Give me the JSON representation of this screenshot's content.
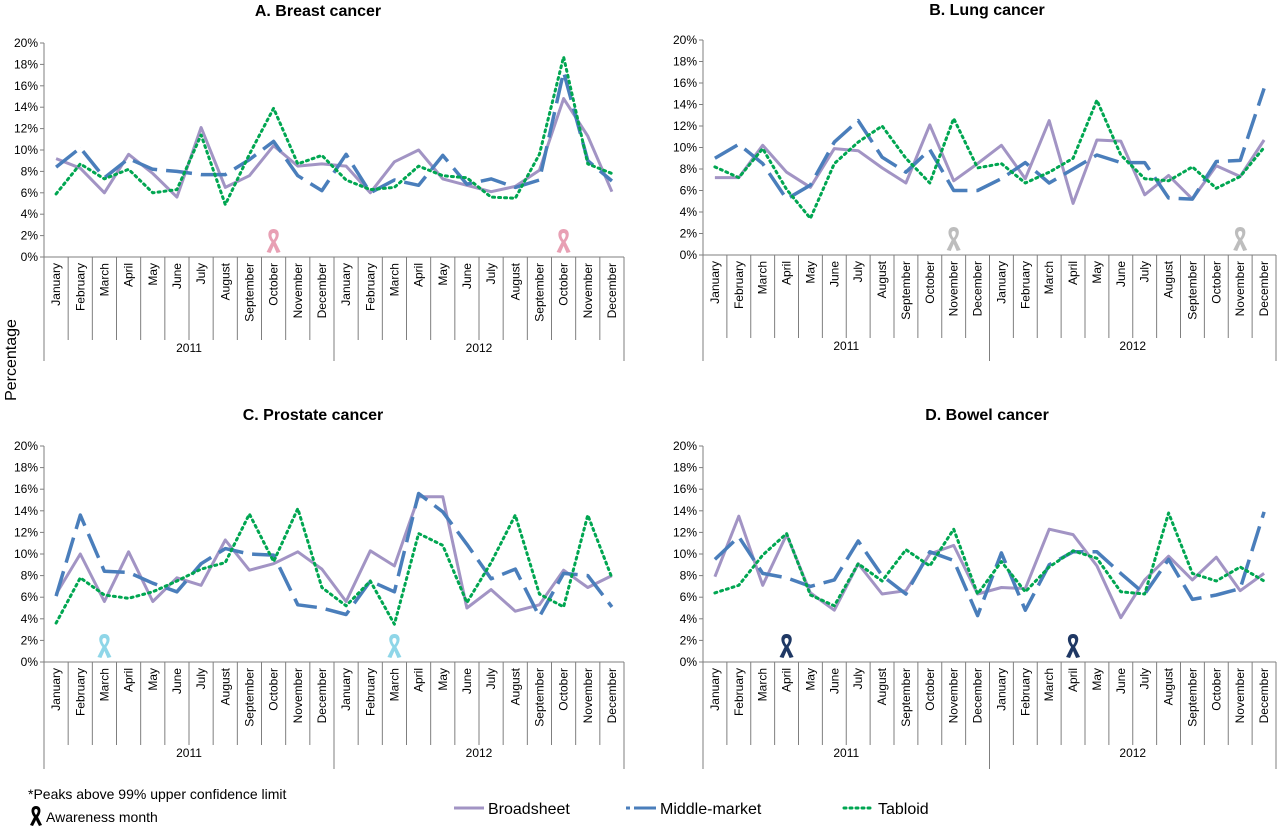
{
  "y_axis_label": "Percentage",
  "legend": {
    "items": [
      {
        "label": "Broadsheet",
        "color": "#a294c4",
        "dash": "solid"
      },
      {
        "label": "Middle-market",
        "color": "#4a7ebb",
        "dash": "long-dash"
      },
      {
        "label": "Tabloid",
        "color": "#00a651",
        "dash": "dotted"
      }
    ]
  },
  "notes": {
    "peaks": "*Peaks above 99% upper confidence limit",
    "awareness": "Awareness month"
  },
  "chart_data": [
    {
      "type": "line",
      "title": "A. Breast cancer",
      "years": [
        "2011",
        "2012"
      ],
      "categories": [
        "January",
        "February",
        "March",
        "April",
        "May",
        "June",
        "July",
        "August",
        "September",
        "October",
        "November",
        "December",
        "January",
        "February",
        "March",
        "April",
        "May",
        "June",
        "July",
        "August",
        "September",
        "October",
        "November",
        "December"
      ],
      "ylim": [
        0,
        20
      ],
      "yticks": [
        "0%",
        "2%",
        "4%",
        "6%",
        "8%",
        "10%",
        "12%",
        "14%",
        "16%",
        "18%",
        "20%"
      ],
      "awareness_months": [
        9,
        21
      ],
      "ribbon_color": "#e8a0b4",
      "series": [
        {
          "name": "Broadsheet",
          "values": [
            9.2,
            8.3,
            6.0,
            9.6,
            7.8,
            5.6,
            12.1,
            6.5,
            7.6,
            10.4,
            8.5,
            8.7,
            8.5,
            6.0,
            8.9,
            10.0,
            7.3,
            6.7,
            6.1,
            6.6,
            8.1,
            14.8,
            11.3,
            6.1
          ]
        },
        {
          "name": "Middle-market",
          "values": [
            8.4,
            10.2,
            7.4,
            9.2,
            8.2,
            8.0,
            7.7,
            7.7,
            9.1,
            10.8,
            7.6,
            6.2,
            9.6,
            6.0,
            7.2,
            6.7,
            9.5,
            6.8,
            7.3,
            6.5,
            7.2,
            17.3,
            9.0,
            7.1
          ]
        },
        {
          "name": "Tabloid",
          "values": [
            5.9,
            8.7,
            7.3,
            8.2,
            6.0,
            6.3,
            11.4,
            4.9,
            9.6,
            13.9,
            8.7,
            9.5,
            7.2,
            6.3,
            6.5,
            8.5,
            7.6,
            7.4,
            5.6,
            5.5,
            9.6,
            18.7,
            8.7,
            7.8
          ]
        }
      ]
    },
    {
      "type": "line",
      "title": "B. Lung cancer",
      "years": [
        "2011",
        "2012"
      ],
      "categories": [
        "January",
        "February",
        "March",
        "April",
        "May",
        "June",
        "July",
        "August",
        "September",
        "October",
        "November",
        "December",
        "January",
        "February",
        "March",
        "April",
        "May",
        "June",
        "July",
        "August",
        "September",
        "October",
        "November",
        "December"
      ],
      "ylim": [
        0,
        20
      ],
      "yticks": [
        "0%",
        "2%",
        "4%",
        "6%",
        "8%",
        "10%",
        "12%",
        "14%",
        "16%",
        "18%",
        "20%"
      ],
      "awareness_months": [
        10,
        22
      ],
      "ribbon_color": "#bdbdbd",
      "series": [
        {
          "name": "Broadsheet",
          "values": [
            7.2,
            7.2,
            10.2,
            7.7,
            6.3,
            9.9,
            9.7,
            8.1,
            6.7,
            12.1,
            6.9,
            8.5,
            10.2,
            7.1,
            12.5,
            4.8,
            10.7,
            10.6,
            5.6,
            7.4,
            5.2,
            8.3,
            7.3,
            10.7
          ]
        },
        {
          "name": "Middle-market",
          "values": [
            9.0,
            10.3,
            8.5,
            5.2,
            6.5,
            10.5,
            12.5,
            9.1,
            7.7,
            9.8,
            6.0,
            6.0,
            7.1,
            8.6,
            6.7,
            8.0,
            9.3,
            8.6,
            8.6,
            5.3,
            5.2,
            8.7,
            8.8,
            15.5
          ]
        },
        {
          "name": "Tabloid",
          "values": [
            8.2,
            7.2,
            9.9,
            6.1,
            3.4,
            8.5,
            10.5,
            12.0,
            9.0,
            6.7,
            12.7,
            8.1,
            8.5,
            6.7,
            7.7,
            9.0,
            14.4,
            9.3,
            7.1,
            6.9,
            8.2,
            6.2,
            7.3,
            10.0
          ]
        }
      ]
    },
    {
      "type": "line",
      "title": "C. Prostate cancer",
      "years": [
        "2011",
        "2012"
      ],
      "categories": [
        "January",
        "February",
        "March",
        "April",
        "May",
        "June",
        "July",
        "August",
        "September",
        "October",
        "November",
        "December",
        "January",
        "February",
        "March",
        "April",
        "May",
        "June",
        "July",
        "August",
        "September",
        "October",
        "November",
        "December"
      ],
      "ylim": [
        0,
        20
      ],
      "yticks": [
        "0%",
        "2%",
        "4%",
        "6%",
        "8%",
        "10%",
        "12%",
        "14%",
        "16%",
        "18%",
        "20%"
      ],
      "awareness_months": [
        2,
        14
      ],
      "ribbon_color": "#8fd6e8",
      "series": [
        {
          "name": "Broadsheet",
          "values": [
            6.3,
            10.0,
            5.6,
            10.2,
            5.6,
            7.8,
            7.1,
            11.3,
            8.5,
            9.1,
            10.2,
            8.6,
            5.6,
            10.3,
            8.9,
            15.3,
            15.3,
            5.0,
            6.7,
            4.7,
            5.3,
            8.5,
            6.9,
            8.0
          ]
        },
        {
          "name": "Middle-market",
          "values": [
            6.1,
            13.6,
            8.4,
            8.3,
            7.3,
            6.5,
            9.1,
            10.5,
            10.0,
            9.9,
            5.3,
            5.0,
            4.4,
            7.5,
            6.5,
            15.6,
            13.9,
            10.9,
            7.7,
            8.6,
            4.2,
            8.2,
            8.0,
            5.1
          ]
        },
        {
          "name": "Tabloid",
          "values": [
            3.6,
            7.8,
            6.2,
            5.9,
            6.5,
            7.5,
            8.6,
            9.2,
            13.7,
            9.3,
            14.2,
            6.9,
            5.2,
            7.5,
            3.5,
            11.9,
            10.8,
            5.5,
            9.2,
            13.6,
            6.3,
            5.1,
            13.6,
            7.8
          ]
        }
      ]
    },
    {
      "type": "line",
      "title": "D. Bowel cancer",
      "years": [
        "2011",
        "2012"
      ],
      "categories": [
        "January",
        "February",
        "March",
        "April",
        "May",
        "June",
        "July",
        "August",
        "September",
        "October",
        "November",
        "December",
        "January",
        "February",
        "March",
        "April",
        "May",
        "June",
        "July",
        "August",
        "September",
        "October",
        "November",
        "December"
      ],
      "ylim": [
        0,
        20
      ],
      "yticks": [
        "0%",
        "2%",
        "4%",
        "6%",
        "8%",
        "10%",
        "12%",
        "14%",
        "16%",
        "18%",
        "20%"
      ],
      "awareness_months": [
        3,
        15
      ],
      "ribbon_color": "#1f3864",
      "series": [
        {
          "name": "Broadsheet",
          "values": [
            7.9,
            13.5,
            7.1,
            11.8,
            6.4,
            4.8,
            9.1,
            6.3,
            6.6,
            10.0,
            10.8,
            6.3,
            6.9,
            6.8,
            12.3,
            11.8,
            8.9,
            4.1,
            7.6,
            9.8,
            7.6,
            9.7,
            6.6,
            8.2
          ]
        },
        {
          "name": "Middle-market",
          "values": [
            9.5,
            11.6,
            8.2,
            7.8,
            7.0,
            7.6,
            11.2,
            8.0,
            6.3,
            10.2,
            9.4,
            4.3,
            10.1,
            4.8,
            9.0,
            10.2,
            10.2,
            8.2,
            6.3,
            9.5,
            5.8,
            6.2,
            6.8,
            13.9
          ]
        },
        {
          "name": "Tabloid",
          "values": [
            6.4,
            7.1,
            9.9,
            11.9,
            6.2,
            5.2,
            9.1,
            7.5,
            10.4,
            8.9,
            12.3,
            6.3,
            9.3,
            6.5,
            8.8,
            10.3,
            9.6,
            6.5,
            6.3,
            13.8,
            8.2,
            7.5,
            8.8,
            7.5
          ]
        }
      ]
    }
  ]
}
